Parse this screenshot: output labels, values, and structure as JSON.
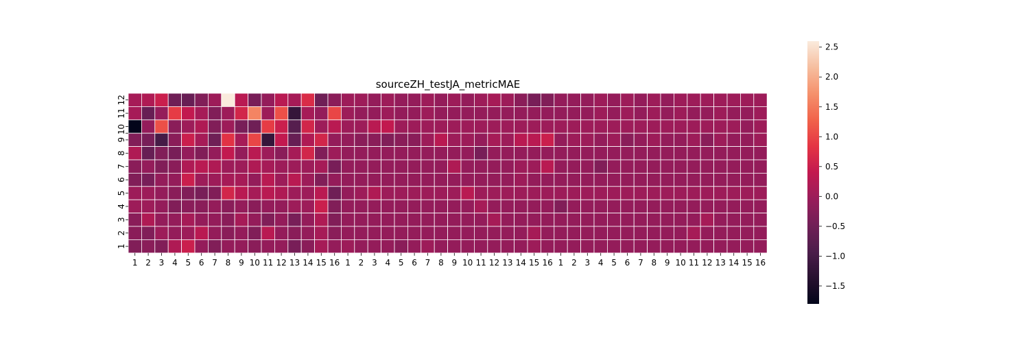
{
  "chart_data": {
    "type": "heatmap",
    "title": "sourceZH_testJA_metricMAE",
    "xlabel": "",
    "ylabel": "",
    "x_tick_labels": [
      "1",
      "2",
      "3",
      "4",
      "5",
      "6",
      "7",
      "8",
      "9",
      "10",
      "11",
      "12",
      "13",
      "14",
      "15",
      "16",
      "1",
      "2",
      "3",
      "4",
      "5",
      "6",
      "7",
      "8",
      "9",
      "10",
      "11",
      "12",
      "13",
      "14",
      "15",
      "16",
      "1",
      "2",
      "3",
      "4",
      "5",
      "6",
      "7",
      "8",
      "9",
      "10",
      "11",
      "12",
      "13",
      "14",
      "15",
      "16"
    ],
    "y_tick_labels": [
      "12",
      "11",
      "10",
      "9",
      "8",
      "7",
      "6",
      "5",
      "4",
      "3",
      "2",
      "1"
    ],
    "y_tick_labels_display": [
      "12",
      "11",
      "9 10",
      "8",
      "7",
      "6",
      "5",
      "4",
      "3",
      "2",
      "1"
    ],
    "colorbar": {
      "vmin": -1.8,
      "vmax": 2.6,
      "ticks": [
        -1.5,
        -1.0,
        -0.5,
        0.0,
        0.5,
        1.0,
        1.5,
        2.0,
        2.5
      ],
      "tick_labels": [
        "−1.5",
        "−1.0",
        "−0.5",
        "0.0",
        "0.5",
        "1.0",
        "1.5",
        "2.0",
        "2.5"
      ],
      "colormap": "rocket"
    },
    "grid": true,
    "gridline_color": "#ffffff",
    "rows": [
      [
        0.1,
        0.2,
        0.5,
        -0.5,
        -0.6,
        -0.3,
        0.0,
        2.6,
        0.3,
        -0.4,
        -0.1,
        0.3,
        0.1,
        0.7,
        -0.5,
        -0.2,
        0.0,
        0.0,
        -0.1,
        0.0,
        -0.1,
        -0.1,
        0.0,
        -0.1,
        0.0,
        -0.1,
        0.0,
        0.1,
        0.0,
        -0.2,
        -0.4,
        -0.3,
        -0.1,
        -0.1,
        -0.1,
        0.0,
        -0.1,
        0.0,
        -0.1,
        0.0,
        -0.1,
        0.0,
        0.0,
        0.0,
        0.0,
        0.0,
        0.0,
        0.0
      ],
      [
        0.1,
        -0.6,
        -0.1,
        0.9,
        0.4,
        0.1,
        -0.3,
        0.0,
        0.6,
        1.6,
        0.0,
        1.1,
        -1.2,
        0.1,
        -0.1,
        1.0,
        0.0,
        -0.1,
        -0.1,
        0.0,
        -0.1,
        -0.1,
        0.0,
        -0.1,
        -0.1,
        -0.1,
        -0.1,
        -0.1,
        -0.1,
        -0.1,
        -0.1,
        -0.1,
        -0.1,
        -0.1,
        -0.1,
        0.0,
        -0.1,
        0.0,
        -0.1,
        0.0,
        -0.1,
        0.0,
        -0.1,
        -0.1,
        0.0,
        -0.1,
        -0.1,
        0.0
      ],
      [
        -1.8,
        -0.1,
        1.1,
        -0.2,
        0.0,
        0.2,
        -0.3,
        0.0,
        -0.4,
        -0.5,
        0.9,
        0.5,
        -0.8,
        0.6,
        0.0,
        0.3,
        0.0,
        0.0,
        0.3,
        0.4,
        0.0,
        0.0,
        0.0,
        0.0,
        0.0,
        0.0,
        0.0,
        0.0,
        0.0,
        0.0,
        0.0,
        0.0,
        0.0,
        0.0,
        0.0,
        0.0,
        0.0,
        0.0,
        0.0,
        0.0,
        0.0,
        0.0,
        0.0,
        0.0,
        0.0,
        0.0,
        -0.1,
        0.0
      ],
      [
        -0.3,
        -0.4,
        -1.0,
        -0.2,
        0.5,
        0.1,
        -0.5,
        0.8,
        0.1,
        1.0,
        -1.2,
        0.4,
        -0.6,
        0.2,
        0.6,
        -0.1,
        -0.1,
        -0.2,
        -0.2,
        -0.3,
        -0.2,
        -0.2,
        0.0,
        0.3,
        0.0,
        0.0,
        -0.1,
        0.1,
        0.0,
        0.3,
        0.3,
        0.5,
        -0.1,
        0.0,
        0.0,
        -0.1,
        0.0,
        -0.2,
        -0.1,
        0.0,
        -0.1,
        -0.1,
        0.0,
        -0.2,
        0.0,
        -0.1,
        -0.1,
        0.0
      ],
      [
        0.2,
        -0.6,
        -0.3,
        -0.4,
        -0.1,
        -0.3,
        -0.1,
        0.4,
        -0.1,
        0.3,
        0.0,
        -0.2,
        0.1,
        0.6,
        -0.3,
        0.0,
        -0.1,
        -0.1,
        -0.1,
        -0.1,
        -0.1,
        -0.1,
        -0.1,
        -0.1,
        -0.1,
        -0.1,
        -0.4,
        -0.1,
        -0.1,
        -0.1,
        -0.1,
        -0.1,
        -0.1,
        -0.1,
        -0.1,
        -0.1,
        -0.1,
        -0.1,
        -0.1,
        -0.1,
        -0.1,
        -0.1,
        -0.1,
        -0.1,
        -0.1,
        -0.1,
        -0.1,
        -0.1
      ],
      [
        -0.2,
        -0.1,
        -0.3,
        -0.2,
        0.2,
        0.3,
        0.2,
        0.0,
        0.0,
        0.2,
        0.1,
        0.0,
        0.0,
        0.0,
        0.1,
        -0.4,
        -0.1,
        -0.1,
        -0.1,
        -0.1,
        -0.1,
        -0.1,
        -0.1,
        -0.1,
        0.2,
        -0.1,
        -0.1,
        -0.1,
        -0.1,
        0.0,
        0.0,
        0.3,
        -0.1,
        -0.1,
        -0.1,
        -0.3,
        -0.1,
        -0.1,
        -0.1,
        -0.1,
        -0.1,
        -0.1,
        -0.1,
        -0.1,
        -0.1,
        -0.1,
        -0.1,
        -0.1
      ],
      [
        -0.3,
        -0.4,
        -0.1,
        -0.1,
        0.5,
        0.0,
        0.0,
        0.1,
        0.1,
        -0.1,
        0.3,
        0.0,
        0.3,
        0.0,
        -0.3,
        -0.1,
        -0.1,
        -0.1,
        -0.1,
        -0.1,
        -0.1,
        -0.1,
        -0.1,
        -0.1,
        -0.1,
        -0.1,
        -0.1,
        -0.1,
        -0.1,
        0.0,
        -0.1,
        -0.1,
        -0.1,
        -0.1,
        -0.1,
        -0.1,
        -0.1,
        -0.1,
        -0.1,
        -0.1,
        -0.1,
        -0.1,
        -0.1,
        -0.1,
        -0.1,
        -0.1,
        -0.1,
        -0.1
      ],
      [
        0.0,
        0.0,
        -0.1,
        -0.2,
        -0.3,
        -0.4,
        -0.3,
        0.6,
        0.3,
        0.1,
        0.3,
        0.2,
        0.0,
        0.0,
        0.3,
        -0.5,
        -0.1,
        0.0,
        0.2,
        0.0,
        0.0,
        0.0,
        0.0,
        0.0,
        0.0,
        0.3,
        0.0,
        0.0,
        0.0,
        0.0,
        0.0,
        0.0,
        0.0,
        0.0,
        0.0,
        0.0,
        0.0,
        0.0,
        0.0,
        0.0,
        0.0,
        0.0,
        0.0,
        0.0,
        0.0,
        0.0,
        0.0,
        0.0
      ],
      [
        0.0,
        0.0,
        -0.1,
        -0.3,
        -0.2,
        -0.2,
        -0.1,
        -0.2,
        -0.1,
        -0.2,
        -0.1,
        -0.1,
        0.0,
        0.0,
        0.5,
        -0.3,
        -0.1,
        -0.1,
        -0.1,
        -0.1,
        -0.1,
        -0.1,
        -0.1,
        -0.1,
        -0.1,
        -0.1,
        0.1,
        -0.1,
        -0.1,
        -0.1,
        -0.1,
        -0.1,
        -0.3,
        -0.1,
        -0.1,
        -0.1,
        -0.1,
        -0.1,
        -0.1,
        -0.1,
        -0.1,
        -0.1,
        -0.1,
        -0.1,
        -0.1,
        -0.1,
        -0.1,
        -0.1
      ],
      [
        -0.2,
        0.2,
        -0.1,
        -0.1,
        0.1,
        -0.1,
        -0.1,
        -0.2,
        0.1,
        -0.1,
        -0.3,
        -0.1,
        -0.4,
        -0.1,
        0.2,
        -0.3,
        -0.1,
        -0.1,
        -0.1,
        -0.1,
        -0.1,
        -0.1,
        -0.1,
        -0.1,
        -0.1,
        -0.1,
        -0.1,
        0.1,
        -0.1,
        -0.1,
        -0.1,
        -0.1,
        -0.1,
        -0.1,
        -0.1,
        -0.1,
        -0.1,
        -0.1,
        -0.1,
        -0.1,
        -0.1,
        -0.1,
        -0.1,
        0.1,
        -0.1,
        -0.1,
        -0.1,
        -0.1
      ],
      [
        -0.2,
        -0.3,
        0.0,
        -0.1,
        0.0,
        0.3,
        -0.1,
        -0.2,
        -0.1,
        -0.3,
        0.3,
        -0.1,
        -0.2,
        -0.1,
        0.1,
        -0.2,
        -0.1,
        -0.1,
        -0.1,
        -0.1,
        -0.1,
        -0.1,
        -0.1,
        -0.1,
        -0.1,
        -0.1,
        -0.1,
        -0.1,
        -0.1,
        -0.1,
        0.1,
        -0.1,
        -0.1,
        -0.1,
        -0.1,
        -0.1,
        -0.1,
        -0.1,
        -0.1,
        -0.1,
        -0.1,
        -0.1,
        0.1,
        -0.1,
        -0.1,
        -0.1,
        -0.1,
        -0.1
      ],
      [
        -0.3,
        -0.2,
        -0.3,
        0.2,
        0.5,
        -0.1,
        -0.3,
        -0.1,
        -0.1,
        -0.2,
        -0.1,
        -0.1,
        -0.4,
        -0.2,
        0.1,
        -0.1,
        0.0,
        -0.1,
        -0.1,
        -0.1,
        -0.2,
        -0.1,
        0.0,
        -0.1,
        -0.1,
        -0.1,
        -0.1,
        -0.1,
        -0.1,
        -0.1,
        0.0,
        -0.1,
        -0.1,
        -0.1,
        -0.1,
        -0.1,
        -0.1,
        -0.1,
        -0.1,
        -0.1,
        -0.1,
        -0.1,
        -0.1,
        -0.1,
        -0.1,
        -0.1,
        -0.1,
        -0.1
      ]
    ]
  }
}
